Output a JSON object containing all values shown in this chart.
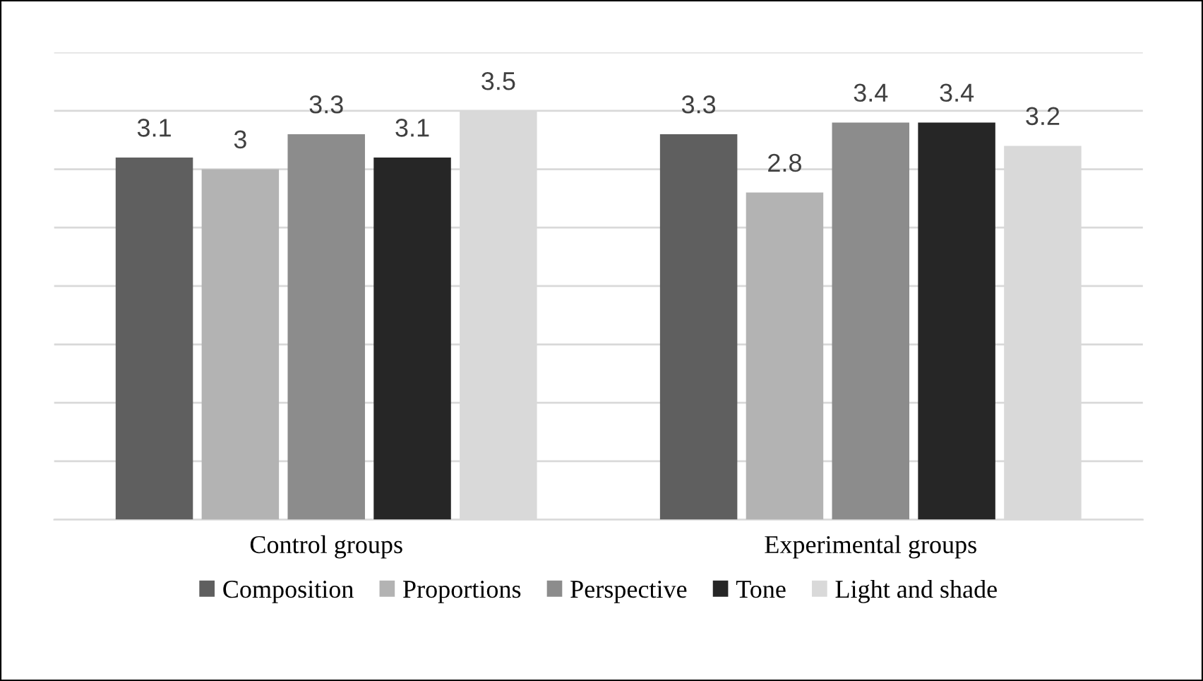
{
  "chart_data": {
    "type": "bar",
    "categories": [
      "Control groups",
      "Experimental groups"
    ],
    "series": [
      {
        "name": "Composition",
        "color": "#5f5f5f",
        "values": [
          3.1,
          3.3
        ]
      },
      {
        "name": "Proportions",
        "color": "#b3b3b3",
        "values": [
          3,
          2.8
        ]
      },
      {
        "name": "Perspective",
        "color": "#8c8c8c",
        "values": [
          3.3,
          3.4
        ]
      },
      {
        "name": "Tone",
        "color": "#262626",
        "values": [
          3.1,
          3.4
        ]
      },
      {
        "name": "Light and shade",
        "color": "#d9d9d9",
        "values": [
          3.5,
          3.2
        ]
      }
    ],
    "ylim": [
      0,
      4
    ],
    "yticks": [
      {
        "value": 0,
        "label": null
      },
      {
        "value": 0.5,
        "label": null
      },
      {
        "value": 1,
        "label": null
      },
      {
        "value": 1.5,
        "label": null
      },
      {
        "value": 2,
        "label": null
      },
      {
        "value": 2.5,
        "label": null
      },
      {
        "value": 3,
        "label": null
      },
      {
        "value": 3.5,
        "label": null
      },
      {
        "value": 4,
        "label": null
      }
    ],
    "tick_labels": "x",
    "grid": "y",
    "data_labels": true,
    "legend": "bottom"
  }
}
